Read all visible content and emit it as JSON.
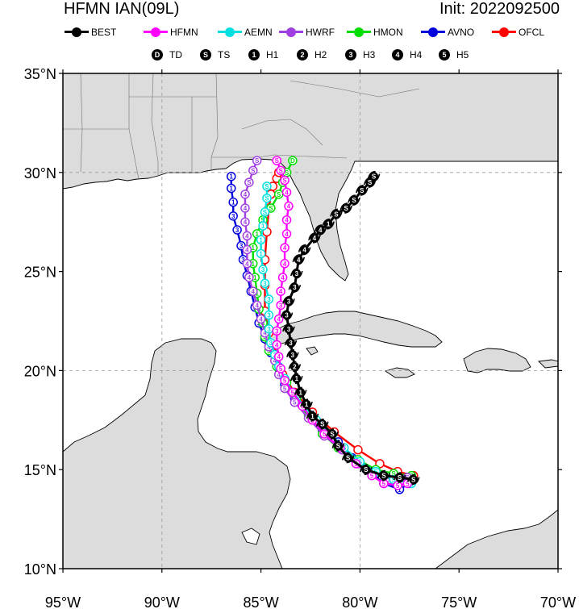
{
  "title": {
    "left": "HFMN IAN(09L)",
    "right": "Init: 2022092500"
  },
  "legend": {
    "models": [
      {
        "name": "BEST",
        "color": "#000000",
        "symbol": "hurricane-icon"
      },
      {
        "name": "HFMN",
        "color": "#ff00ff",
        "symbol": "dot"
      },
      {
        "name": "AEMN",
        "color": "#00e0e0",
        "symbol": "dot"
      },
      {
        "name": "HWRF",
        "color": "#a040e0",
        "symbol": "dot"
      },
      {
        "name": "HMON",
        "color": "#00dd00",
        "symbol": "dot"
      },
      {
        "name": "AVNO",
        "color": "#0000dd",
        "symbol": "dot"
      },
      {
        "name": "OFCL",
        "color": "#ff0000",
        "symbol": "dot"
      }
    ],
    "categories": [
      {
        "code": "D",
        "label": "TD"
      },
      {
        "code": "S",
        "label": "TS"
      },
      {
        "code": "1",
        "label": "H1"
      },
      {
        "code": "2",
        "label": "H2"
      },
      {
        "code": "3",
        "label": "H3"
      },
      {
        "code": "4",
        "label": "H4"
      },
      {
        "code": "5",
        "label": "H5"
      }
    ]
  },
  "axes": {
    "lon_range": [
      -95,
      -70
    ],
    "lat_range": [
      10,
      35
    ],
    "x_ticks": [
      {
        "value": -95,
        "label": "95°W"
      },
      {
        "value": -90,
        "label": "90°W"
      },
      {
        "value": -85,
        "label": "85°W"
      },
      {
        "value": -80,
        "label": "80°W"
      },
      {
        "value": -75,
        "label": "75°W"
      },
      {
        "value": -70,
        "label": "70°W"
      }
    ],
    "y_ticks": [
      {
        "value": 35,
        "label": "35°N"
      },
      {
        "value": 30,
        "label": "30°N"
      },
      {
        "value": 25,
        "label": "25°N"
      },
      {
        "value": 20,
        "label": "20°N"
      },
      {
        "value": 15,
        "label": "15°N"
      },
      {
        "value": 10,
        "label": "10°N"
      }
    ],
    "grid_lon": [
      -90,
      -80
    ],
    "grid_lat": [
      30,
      20
    ]
  },
  "colors": {
    "land": "#dcdcdc",
    "ocean": "#ffffff",
    "coast": "#000000",
    "border": "#707070",
    "grid": "#999999"
  },
  "chart_data": {
    "type": "map",
    "tracks": [
      {
        "name": "BEST",
        "points": [
          [
            -77.3,
            14.5,
            "S"
          ],
          [
            -78.0,
            14.6,
            "S"
          ],
          [
            -78.8,
            14.7,
            "S"
          ],
          [
            -79.7,
            15.0,
            "S"
          ],
          [
            -80.6,
            15.6,
            "S"
          ],
          [
            -81.1,
            16.2,
            "S"
          ],
          [
            -81.4,
            16.8,
            "S"
          ],
          [
            -81.9,
            17.3,
            "S"
          ],
          [
            -82.4,
            17.7,
            "1"
          ],
          [
            -82.7,
            18.3,
            "1"
          ],
          [
            -83.0,
            18.9,
            "1"
          ],
          [
            -83.2,
            19.6,
            "1"
          ],
          [
            -83.3,
            20.2,
            "2"
          ],
          [
            -83.4,
            20.8,
            "3"
          ],
          [
            -83.5,
            21.4,
            "3"
          ],
          [
            -83.6,
            22.1,
            "3"
          ],
          [
            -83.7,
            22.8,
            "3"
          ],
          [
            -83.6,
            23.5,
            "3"
          ],
          [
            -83.3,
            24.2,
            "3"
          ],
          [
            -83.2,
            24.9,
            "3"
          ],
          [
            -83.1,
            25.6,
            "4"
          ],
          [
            -82.8,
            26.1,
            "4"
          ],
          [
            -82.3,
            26.7,
            "4"
          ],
          [
            -82.0,
            27.1,
            "4"
          ],
          [
            -81.6,
            27.4,
            "1"
          ],
          [
            -81.2,
            27.9,
            "S"
          ],
          [
            -80.7,
            28.2,
            "S"
          ],
          [
            -80.3,
            28.6,
            "S"
          ],
          [
            -79.9,
            29.1,
            "S"
          ],
          [
            -79.5,
            29.5,
            "S"
          ],
          [
            -79.3,
            29.8,
            "S"
          ]
        ]
      },
      {
        "name": "HFMN",
        "points": [
          [
            -77.6,
            14.3,
            "5"
          ],
          [
            -78.1,
            14.2,
            "5"
          ],
          [
            -78.8,
            14.3,
            "5"
          ],
          [
            -79.4,
            14.7,
            "5"
          ],
          [
            -80.2,
            15.3,
            "5"
          ],
          [
            -81.0,
            16.1,
            "5"
          ],
          [
            -81.8,
            16.8,
            "5"
          ],
          [
            -82.4,
            17.5,
            "5"
          ],
          [
            -82.9,
            18.2,
            "5"
          ],
          [
            -83.4,
            18.9,
            "5"
          ],
          [
            -83.8,
            19.5,
            "5"
          ],
          [
            -84.0,
            20.1,
            "5"
          ],
          [
            -84.1,
            20.7,
            "4"
          ],
          [
            -84.2,
            21.3,
            "4"
          ],
          [
            -84.2,
            22.0,
            "3"
          ],
          [
            -84.1,
            22.6,
            "4"
          ],
          [
            -84.0,
            23.3,
            "3"
          ],
          [
            -84.0,
            24.0,
            "4"
          ],
          [
            -83.9,
            24.7,
            "4"
          ],
          [
            -83.8,
            25.4,
            "4"
          ],
          [
            -83.8,
            26.2,
            "4"
          ],
          [
            -83.7,
            26.9,
            "4"
          ],
          [
            -83.7,
            27.6,
            "4"
          ],
          [
            -83.6,
            28.3,
            "4"
          ],
          [
            -83.7,
            29.0,
            "4"
          ],
          [
            -83.8,
            29.6,
            "S"
          ],
          [
            -84.0,
            30.1,
            "S"
          ],
          [
            -84.2,
            30.6,
            "S"
          ]
        ]
      },
      {
        "name": "AEMN",
        "points": [
          [
            -77.4,
            14.3,
            "S"
          ],
          [
            -78.3,
            14.5,
            "S"
          ],
          [
            -79.2,
            14.9,
            "S"
          ],
          [
            -80.0,
            15.4,
            "S"
          ],
          [
            -80.8,
            16.1,
            "S"
          ],
          [
            -81.5,
            16.8,
            "S"
          ],
          [
            -82.2,
            17.5,
            "S"
          ],
          [
            -82.8,
            18.2,
            "S"
          ],
          [
            -83.4,
            18.9,
            "S"
          ],
          [
            -83.8,
            19.6,
            "1"
          ],
          [
            -84.1,
            20.2,
            "2"
          ],
          [
            -84.3,
            20.8,
            "3"
          ],
          [
            -84.5,
            21.4,
            "3"
          ],
          [
            -84.6,
            22.1,
            "3"
          ],
          [
            -84.6,
            22.8,
            "3"
          ],
          [
            -84.6,
            23.6,
            "3"
          ],
          [
            -84.8,
            24.4,
            "3"
          ],
          [
            -84.9,
            25.1,
            "3"
          ],
          [
            -85.0,
            25.9,
            "1"
          ],
          [
            -85.0,
            26.6,
            "1"
          ],
          [
            -84.9,
            27.3,
            "1"
          ],
          [
            -84.8,
            28.0,
            "S"
          ],
          [
            -84.7,
            28.7,
            "S"
          ],
          [
            -84.7,
            29.3,
            "S"
          ]
        ]
      },
      {
        "name": "HWRF",
        "points": [
          [
            -77.6,
            14.6,
            "S"
          ],
          [
            -78.5,
            14.5,
            "S"
          ],
          [
            -79.3,
            14.8,
            "S"
          ],
          [
            -80.1,
            15.3,
            "S"
          ],
          [
            -80.9,
            16.0,
            "S"
          ],
          [
            -81.8,
            16.7,
            "S"
          ],
          [
            -82.6,
            17.6,
            "5"
          ],
          [
            -83.3,
            18.4,
            "5"
          ],
          [
            -83.8,
            19.1,
            "5"
          ],
          [
            -84.1,
            19.8,
            "4"
          ],
          [
            -84.3,
            20.5,
            "4"
          ],
          [
            -84.6,
            21.2,
            "4"
          ],
          [
            -84.8,
            21.9,
            "4"
          ],
          [
            -85.0,
            22.6,
            "4"
          ],
          [
            -85.2,
            23.3,
            "4"
          ],
          [
            -85.4,
            24.0,
            "4"
          ],
          [
            -85.6,
            24.7,
            "4"
          ],
          [
            -85.7,
            25.4,
            "4"
          ],
          [
            -85.7,
            26.1,
            "4"
          ],
          [
            -85.7,
            26.8,
            "4"
          ],
          [
            -85.8,
            27.5,
            "4"
          ],
          [
            -85.8,
            28.2,
            "4"
          ],
          [
            -85.8,
            28.9,
            "4"
          ],
          [
            -85.6,
            29.5,
            "S"
          ],
          [
            -85.4,
            30.1,
            "S"
          ],
          [
            -85.2,
            30.6,
            "S"
          ]
        ]
      },
      {
        "name": "HMON",
        "points": [
          [
            -77.4,
            14.7,
            "S"
          ],
          [
            -78.3,
            14.8,
            "S"
          ],
          [
            -79.2,
            15.0,
            "S"
          ],
          [
            -80.1,
            15.5,
            "S"
          ],
          [
            -81.1,
            16.1,
            "2"
          ],
          [
            -81.9,
            16.8,
            "2"
          ],
          [
            -82.6,
            17.7,
            "2"
          ],
          [
            -83.2,
            18.6,
            "2"
          ],
          [
            -83.7,
            19.4,
            "3"
          ],
          [
            -84.2,
            20.2,
            "3"
          ],
          [
            -84.6,
            21.0,
            "3"
          ],
          [
            -84.8,
            21.7,
            "3"
          ],
          [
            -84.9,
            22.4,
            "3"
          ],
          [
            -85.1,
            23.1,
            "3"
          ],
          [
            -85.2,
            23.9,
            "1"
          ],
          [
            -85.3,
            24.7,
            "1"
          ],
          [
            -85.4,
            25.4,
            "1"
          ],
          [
            -85.4,
            26.2,
            "1"
          ],
          [
            -85.2,
            26.9,
            "1"
          ],
          [
            -84.9,
            27.6,
            "S"
          ],
          [
            -84.5,
            28.2,
            "S"
          ],
          [
            -84.1,
            28.9,
            "S"
          ],
          [
            -83.9,
            29.5,
            "S"
          ],
          [
            -83.7,
            30.0,
            "S"
          ],
          [
            -83.4,
            30.6,
            "D"
          ]
        ]
      },
      {
        "name": "AVNO",
        "points": [
          [
            -77.5,
            14.3,
            "S"
          ],
          [
            -78.0,
            14.0,
            "1"
          ],
          [
            -78.8,
            14.3,
            "1"
          ],
          [
            -79.6,
            15.0,
            "S"
          ],
          [
            -80.4,
            15.6,
            "S"
          ],
          [
            -81.1,
            16.4,
            "S"
          ],
          [
            -81.9,
            17.0,
            "S"
          ],
          [
            -82.6,
            17.8,
            "S"
          ],
          [
            -83.3,
            18.6,
            "1"
          ],
          [
            -83.8,
            19.3,
            "2"
          ],
          [
            -84.1,
            20.1,
            "2"
          ],
          [
            -84.5,
            20.9,
            "2"
          ],
          [
            -84.8,
            21.6,
            "3"
          ],
          [
            -85.1,
            22.4,
            "3"
          ],
          [
            -85.3,
            23.2,
            "3"
          ],
          [
            -85.5,
            24.0,
            "3"
          ],
          [
            -85.7,
            24.8,
            "3"
          ],
          [
            -85.9,
            25.6,
            "3"
          ],
          [
            -86.0,
            26.3,
            "3"
          ],
          [
            -86.2,
            27.1,
            "3"
          ],
          [
            -86.4,
            27.8,
            "3"
          ],
          [
            -86.4,
            28.5,
            "1"
          ],
          [
            -86.5,
            29.2,
            "1"
          ],
          [
            -86.5,
            29.8,
            "1"
          ]
        ]
      },
      {
        "name": "OFCL",
        "points": [
          [
            -77.3,
            14.7,
            ""
          ],
          [
            -78.1,
            14.9,
            ""
          ],
          [
            -79.0,
            15.3,
            ""
          ],
          [
            -80.1,
            16.0,
            ""
          ],
          [
            -81.3,
            16.9,
            ""
          ],
          [
            -82.4,
            17.9,
            ""
          ],
          [
            -83.3,
            18.9,
            ""
          ],
          [
            -83.9,
            19.8,
            ""
          ],
          [
            -84.4,
            20.9,
            ""
          ],
          [
            -84.6,
            21.9,
            ""
          ],
          [
            -84.8,
            23.0,
            ""
          ],
          [
            -84.8,
            24.3,
            ""
          ],
          [
            -84.8,
            25.6,
            ""
          ],
          [
            -84.7,
            27.0,
            ""
          ],
          [
            -84.6,
            28.2,
            ""
          ],
          [
            -84.5,
            28.9,
            ""
          ],
          [
            -84.4,
            29.3,
            ""
          ],
          [
            -84.2,
            29.7,
            ""
          ],
          [
            -84.1,
            30.0,
            ""
          ]
        ]
      }
    ]
  }
}
